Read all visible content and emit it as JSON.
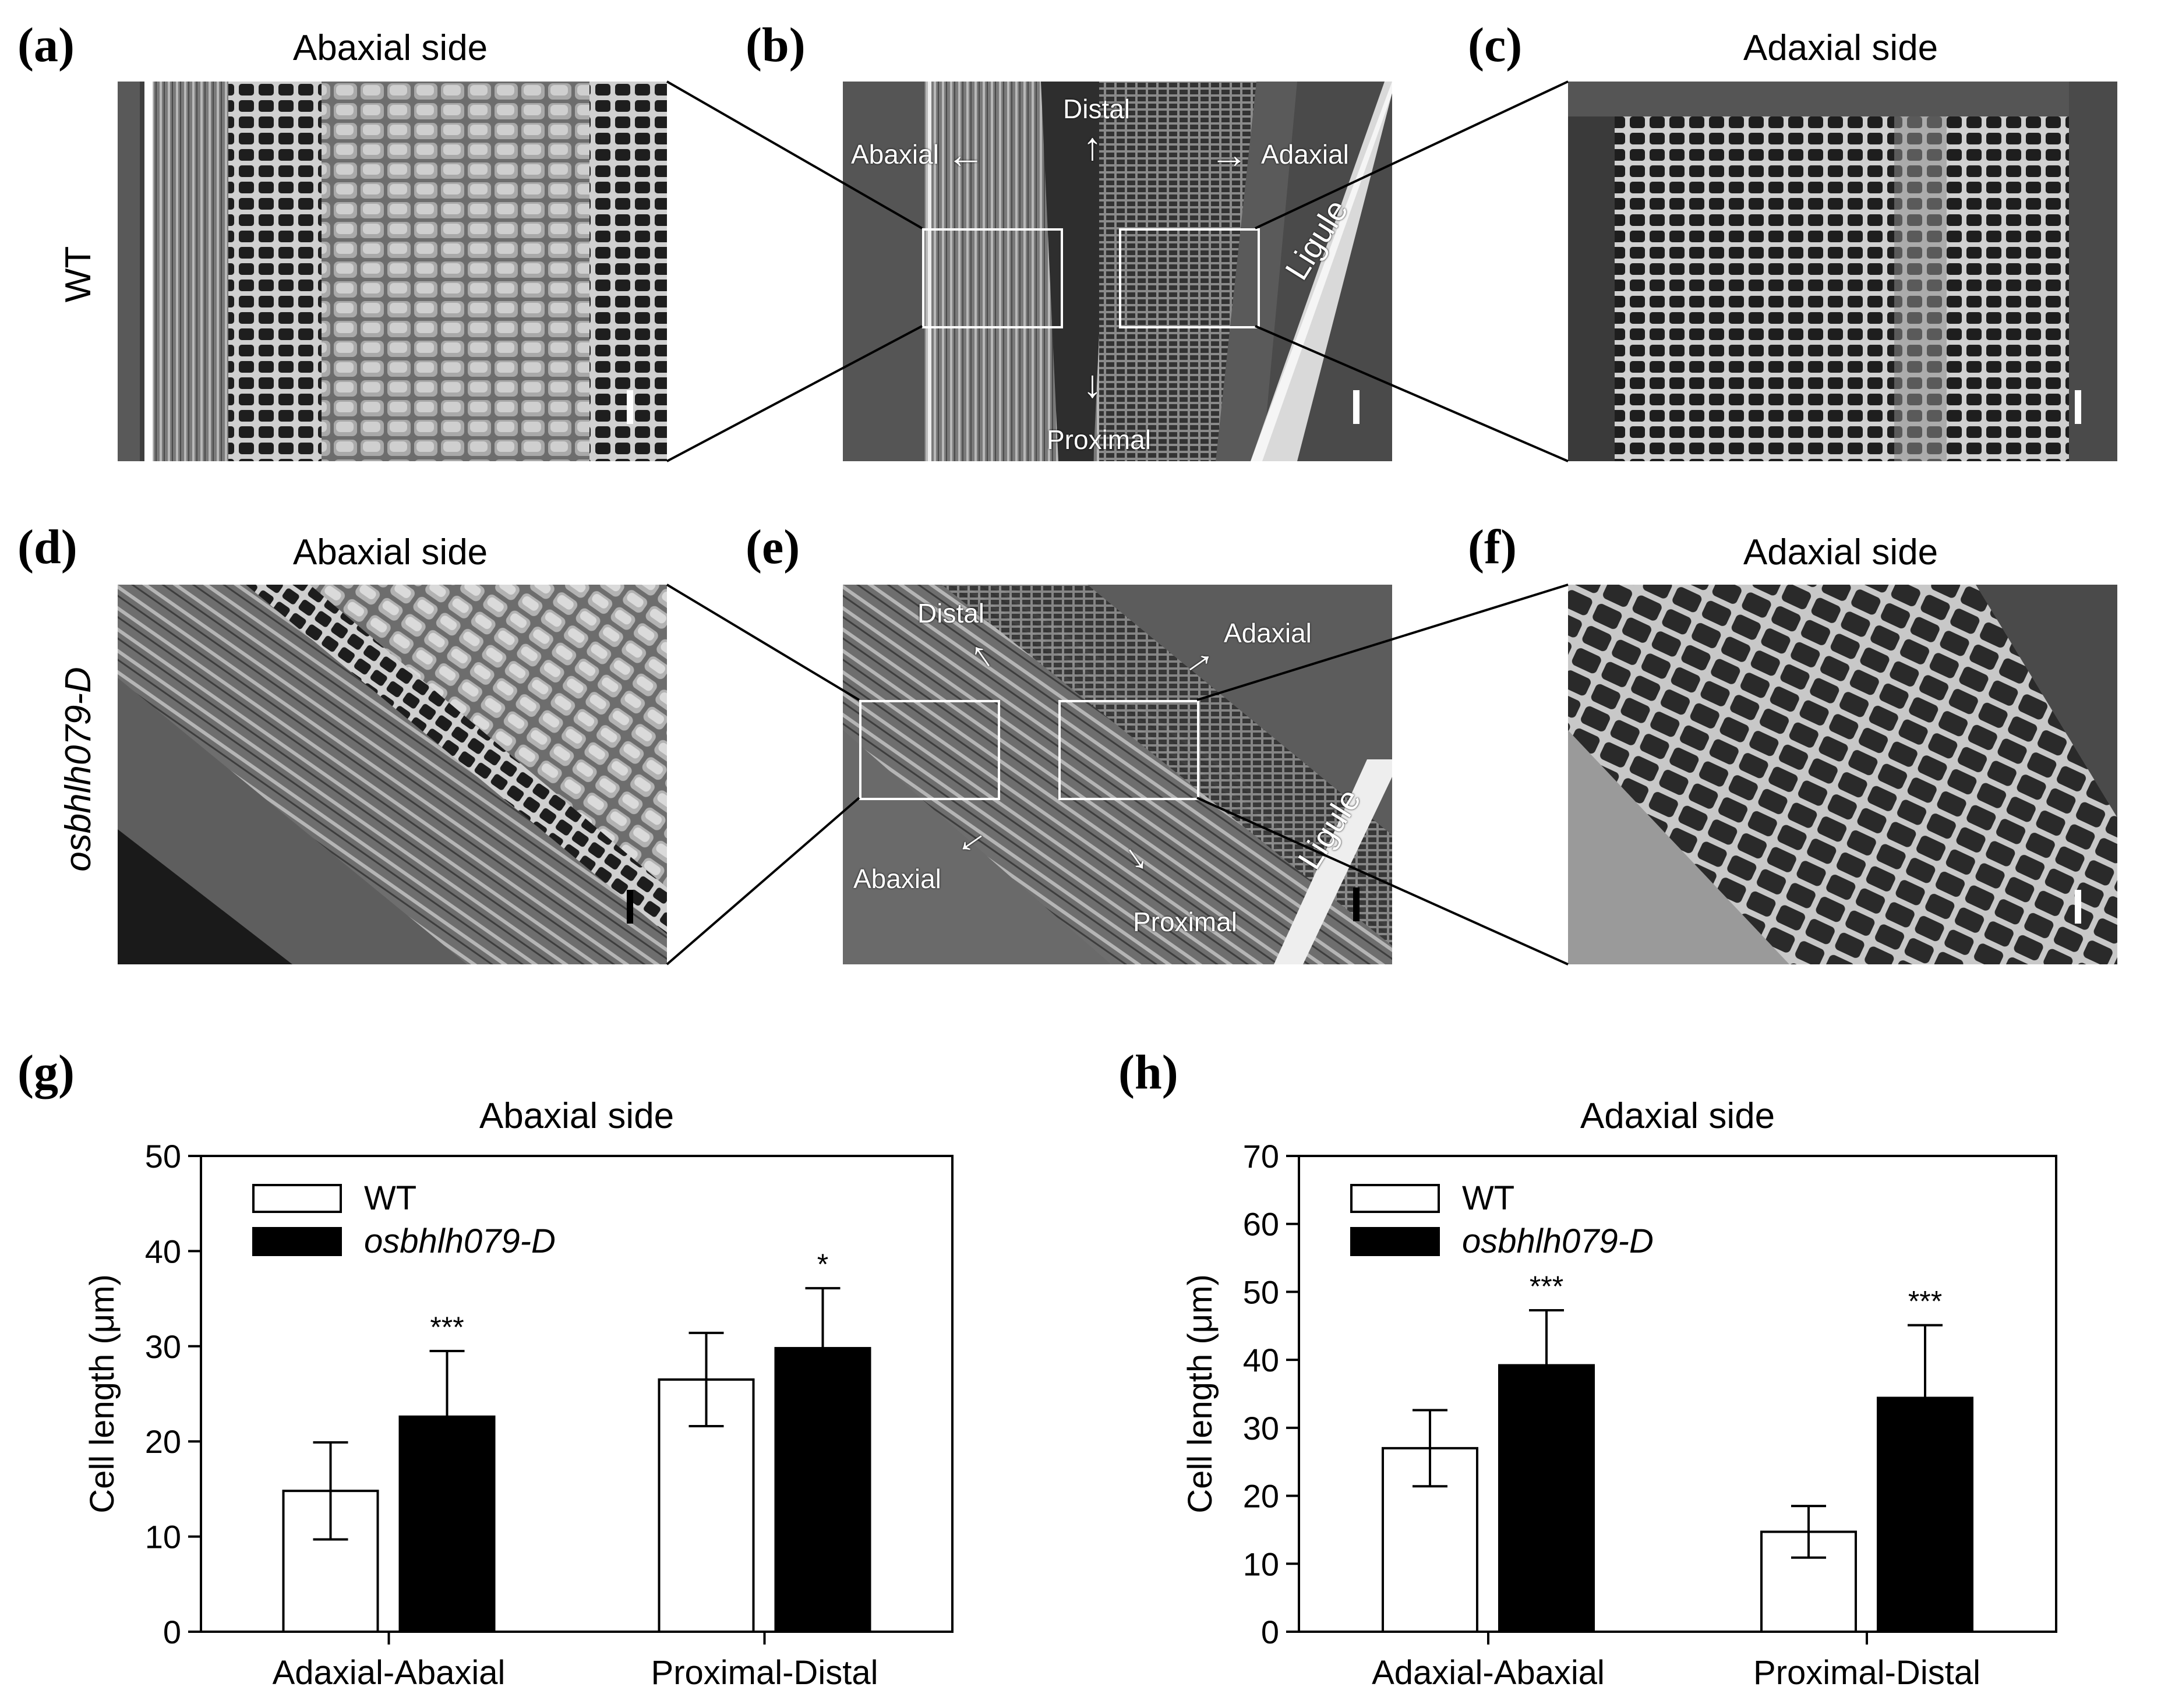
{
  "panels": {
    "a": {
      "letter": "(a)",
      "title": "Abaxial side"
    },
    "b": {
      "letter": "(b)",
      "distal": "Distal",
      "abaxial": "Abaxial",
      "adaxial": "Adaxial",
      "proximal": "Proximal",
      "ligule": "Ligule"
    },
    "c": {
      "letter": "(c)",
      "title": "Adaxial side"
    },
    "d": {
      "letter": "(d)",
      "title": "Abaxial side"
    },
    "e": {
      "letter": "(e)",
      "distal": "Distal",
      "abaxial": "Abaxial",
      "adaxial": "Adaxial",
      "proximal": "Proximal",
      "ligule": "Ligule"
    },
    "f": {
      "letter": "(f)",
      "title": "Adaxial side"
    },
    "g": {
      "letter": "(g)"
    },
    "h": {
      "letter": "(h)"
    }
  },
  "row_labels": {
    "row1": "WT",
    "row2": "osbhlh079-D"
  },
  "chart_data": [
    {
      "id": "g",
      "type": "bar",
      "title": "Abaxial side",
      "ylabel": "Cell length (μm)",
      "xlabel": "",
      "ylim": [
        0,
        50
      ],
      "yticks": [
        0,
        10,
        20,
        30,
        40,
        50
      ],
      "categories": [
        "Adaxial-Abaxial",
        "Proximal-Distal"
      ],
      "series": [
        {
          "name": "WT",
          "color": "#ffffff",
          "values": [
            14.8,
            26.5
          ],
          "errors": [
            5.1,
            4.9
          ]
        },
        {
          "name": "osbhlh079-D",
          "color": "#000000",
          "values": [
            22.6,
            29.8
          ],
          "errors": [
            6.9,
            6.3
          ]
        }
      ],
      "significance": [
        "***",
        "*"
      ],
      "legend": "top-left",
      "grid": false
    },
    {
      "id": "h",
      "type": "bar",
      "title": "Adaxial side",
      "ylabel": "Cell length (μm)",
      "xlabel": "",
      "ylim": [
        0,
        70
      ],
      "yticks": [
        0,
        10,
        20,
        30,
        40,
        50,
        60,
        70
      ],
      "categories": [
        "Adaxial-Abaxial",
        "Proximal-Distal"
      ],
      "series": [
        {
          "name": "WT",
          "color": "#ffffff",
          "values": [
            27.0,
            14.7
          ],
          "errors": [
            5.6,
            3.8
          ]
        },
        {
          "name": "osbhlh079-D",
          "color": "#000000",
          "values": [
            39.2,
            34.4
          ],
          "errors": [
            8.1,
            10.7
          ]
        }
      ],
      "significance": [
        "***",
        "***"
      ],
      "legend": "top-left",
      "grid": false
    }
  ]
}
